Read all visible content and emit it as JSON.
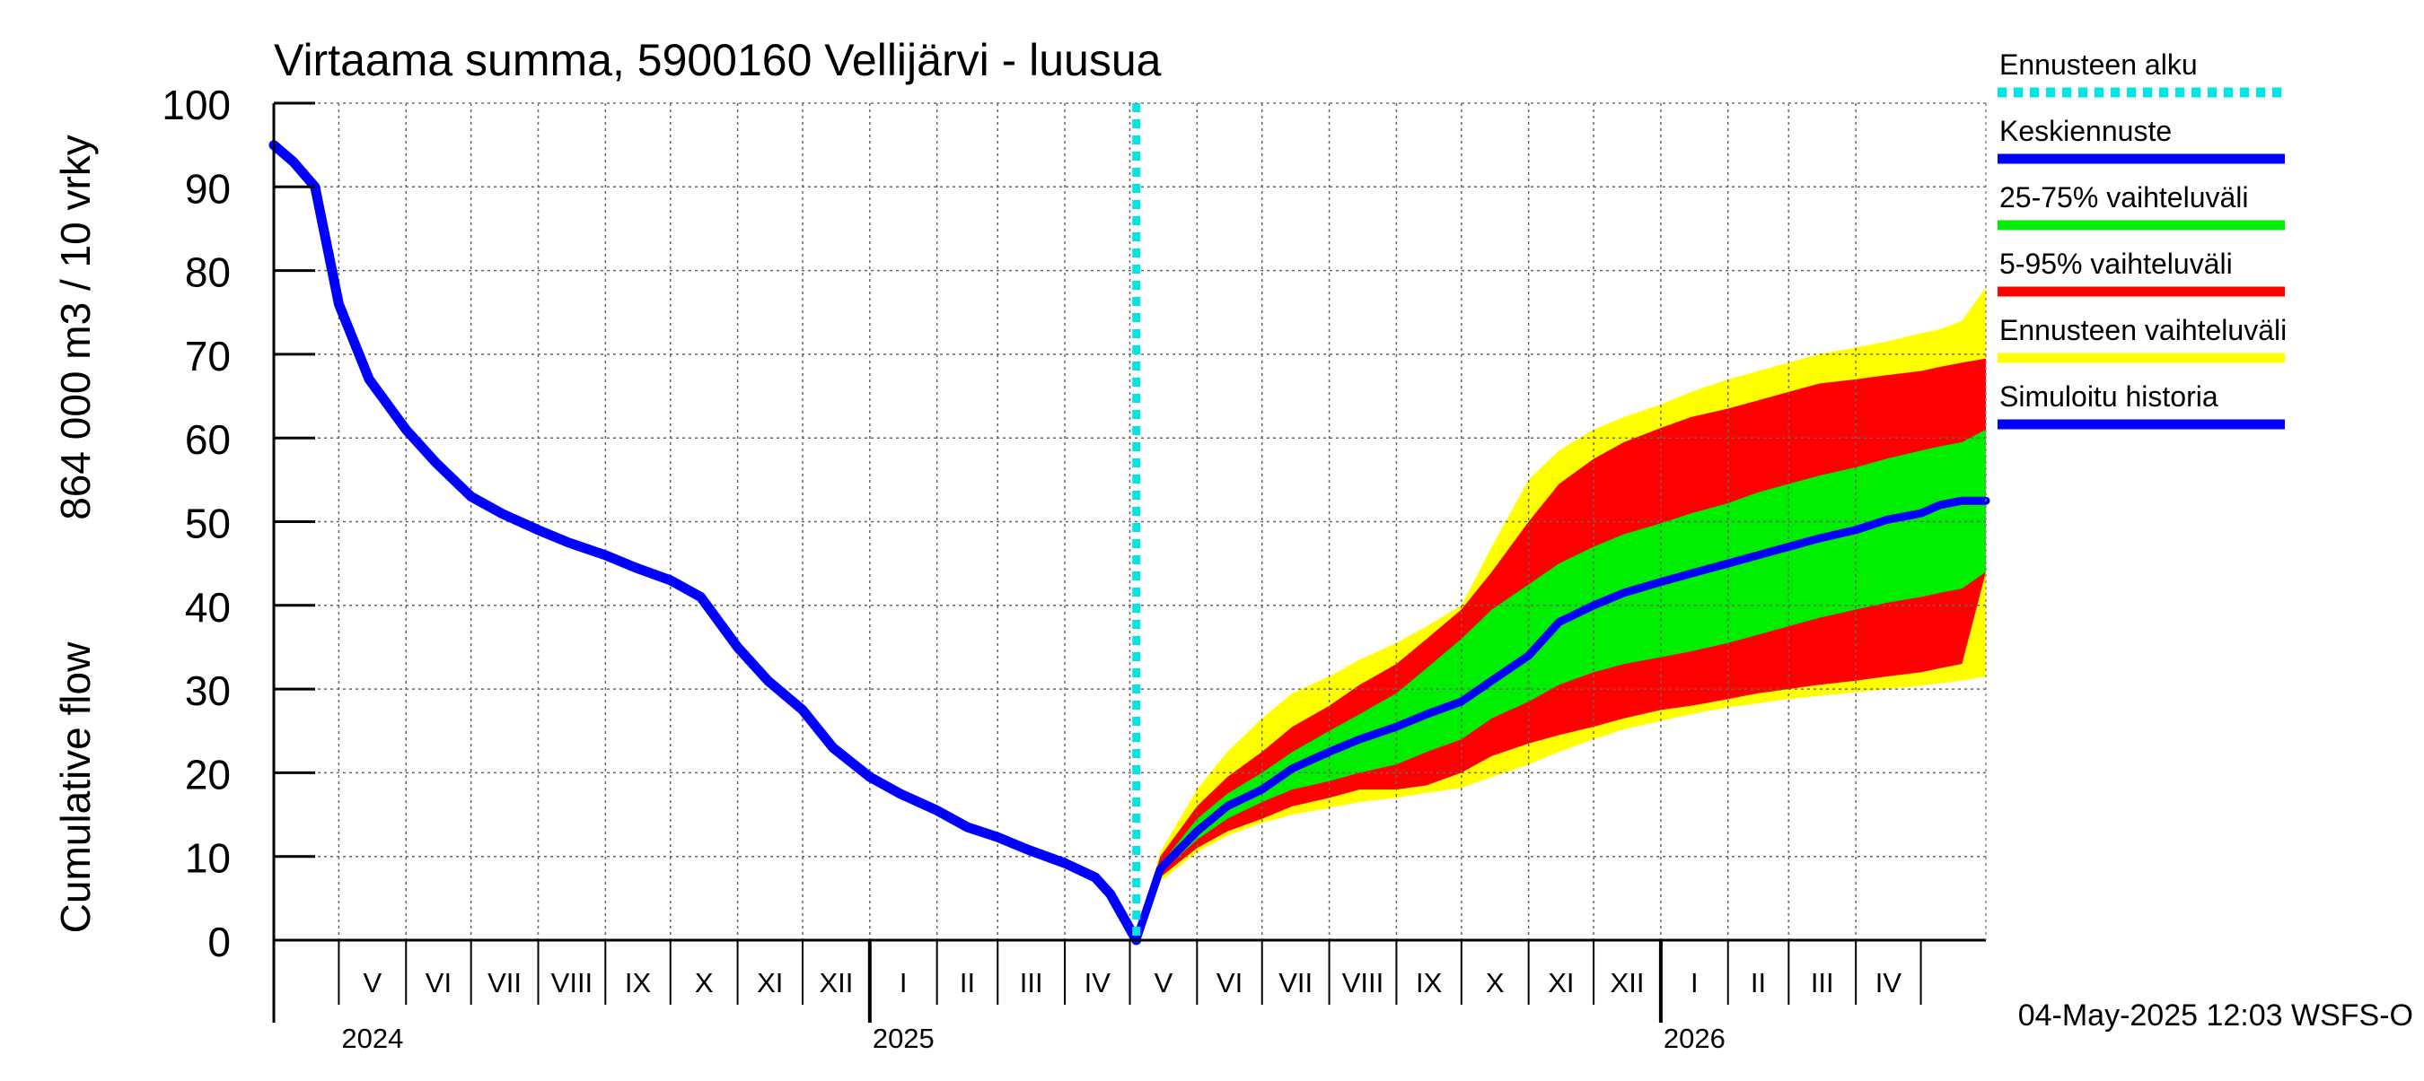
{
  "chart_data": {
    "type": "area",
    "title": "Virtaama summa, 5900160 Vellijärvi - luusua",
    "ylabel_top": "864 000 m3 / 10 vrky",
    "ylabel_bottom": "Cumulative flow",
    "ylim": [
      0,
      100
    ],
    "yticks": [
      0,
      10,
      20,
      30,
      40,
      50,
      60,
      70,
      80,
      90,
      100
    ],
    "xlim": [
      "2024-04-01",
      "2026-05-31"
    ],
    "grid": true,
    "month_labels": [
      {
        "label": "V",
        "start": "2024-05-01",
        "end": "2024-06-01"
      },
      {
        "label": "VI",
        "start": "2024-06-01",
        "end": "2024-07-01"
      },
      {
        "label": "VII",
        "start": "2024-07-01",
        "end": "2024-08-01"
      },
      {
        "label": "VIII",
        "start": "2024-08-01",
        "end": "2024-09-01"
      },
      {
        "label": "IX",
        "start": "2024-09-01",
        "end": "2024-10-01"
      },
      {
        "label": "X",
        "start": "2024-10-01",
        "end": "2024-11-01"
      },
      {
        "label": "XI",
        "start": "2024-11-01",
        "end": "2024-12-01"
      },
      {
        "label": "XII",
        "start": "2024-12-01",
        "end": "2025-01-01"
      },
      {
        "label": "I",
        "start": "2025-01-01",
        "end": "2025-02-01"
      },
      {
        "label": "II",
        "start": "2025-02-01",
        "end": "2025-03-01"
      },
      {
        "label": "III",
        "start": "2025-03-01",
        "end": "2025-04-01"
      },
      {
        "label": "IV",
        "start": "2025-04-01",
        "end": "2025-05-01"
      },
      {
        "label": "V",
        "start": "2025-05-01",
        "end": "2025-06-01"
      },
      {
        "label": "VI",
        "start": "2025-06-01",
        "end": "2025-07-01"
      },
      {
        "label": "VII",
        "start": "2025-07-01",
        "end": "2025-08-01"
      },
      {
        "label": "VIII",
        "start": "2025-08-01",
        "end": "2025-09-01"
      },
      {
        "label": "IX",
        "start": "2025-09-01",
        "end": "2025-10-01"
      },
      {
        "label": "X",
        "start": "2025-10-01",
        "end": "2025-11-01"
      },
      {
        "label": "XI",
        "start": "2025-11-01",
        "end": "2025-12-01"
      },
      {
        "label": "XII",
        "start": "2025-12-01",
        "end": "2026-01-01"
      },
      {
        "label": "I",
        "start": "2026-01-01",
        "end": "2026-02-01"
      },
      {
        "label": "II",
        "start": "2026-02-01",
        "end": "2026-03-01"
      },
      {
        "label": "III",
        "start": "2026-03-01",
        "end": "2026-04-01"
      },
      {
        "label": "IV",
        "start": "2026-04-01",
        "end": "2026-05-01"
      }
    ],
    "year_labels": [
      {
        "label": "2024",
        "date": "2024-05-01"
      },
      {
        "label": "2025",
        "date": "2025-01-01"
      },
      {
        "label": "2026",
        "date": "2026-01-01"
      }
    ],
    "forecast_start": "2025-05-04",
    "legend_position": "right",
    "legend": [
      {
        "label": "Ennusteen alku",
        "color": "#00e5e5",
        "style": "dotted"
      },
      {
        "label": "Keskiennuste",
        "color": "#0000ff",
        "style": "solid"
      },
      {
        "label": "25-75% vaihteluväli",
        "color": "#00ee00",
        "style": "solid"
      },
      {
        "label": "5-95% vaihteluväli",
        "color": "#ff0000",
        "style": "solid"
      },
      {
        "label": "Ennusteen vaihteluväli",
        "color": "#ffff00",
        "style": "solid"
      },
      {
        "label": "Simuloitu historia",
        "color": "#0000ff",
        "style": "solid"
      }
    ],
    "footer": "04-May-2025 12:03 WSFS-O",
    "history": {
      "name": "Simuloitu historia",
      "color": "#0000ff",
      "points": [
        [
          "2024-04-01",
          95
        ],
        [
          "2024-04-10",
          93
        ],
        [
          "2024-04-20",
          90
        ],
        [
          "2024-05-01",
          76
        ],
        [
          "2024-05-15",
          67
        ],
        [
          "2024-06-01",
          61
        ],
        [
          "2024-06-15",
          57
        ],
        [
          "2024-07-01",
          53
        ],
        [
          "2024-07-15",
          51
        ],
        [
          "2024-08-01",
          49
        ],
        [
          "2024-08-15",
          47.5
        ],
        [
          "2024-09-01",
          46
        ],
        [
          "2024-09-15",
          44.5
        ],
        [
          "2024-10-01",
          43
        ],
        [
          "2024-10-15",
          41
        ],
        [
          "2024-11-01",
          35
        ],
        [
          "2024-11-15",
          31
        ],
        [
          "2024-12-01",
          27.5
        ],
        [
          "2024-12-15",
          23
        ],
        [
          "2025-01-01",
          19.5
        ],
        [
          "2025-01-15",
          17.5
        ],
        [
          "2025-02-01",
          15.5
        ],
        [
          "2025-02-15",
          13.5
        ],
        [
          "2025-03-01",
          12.3
        ],
        [
          "2025-03-15",
          10.8
        ],
        [
          "2025-04-01",
          9.2
        ],
        [
          "2025-04-15",
          7.5
        ],
        [
          "2025-04-22",
          5.5
        ],
        [
          "2025-05-04",
          0
        ]
      ]
    },
    "forecast": {
      "dates": [
        "2025-05-04",
        "2025-05-15",
        "2025-06-01",
        "2025-06-15",
        "2025-07-01",
        "2025-07-15",
        "2025-08-01",
        "2025-08-15",
        "2025-09-01",
        "2025-09-15",
        "2025-10-01",
        "2025-10-15",
        "2025-11-01",
        "2025-11-15",
        "2025-12-01",
        "2025-12-15",
        "2026-01-01",
        "2026-01-15",
        "2026-02-01",
        "2026-02-15",
        "2026-03-01",
        "2026-03-15",
        "2026-04-01",
        "2026-04-15",
        "2026-05-01",
        "2026-05-10",
        "2026-05-20",
        "2026-05-31"
      ],
      "min": [
        0,
        7,
        10.5,
        12.5,
        14,
        15,
        15.8,
        16.5,
        17,
        17.6,
        18.2,
        19.5,
        21,
        22.5,
        24,
        25.2,
        26.2,
        27,
        27.8,
        28.3,
        28.8,
        29.2,
        29.6,
        30,
        30.4,
        30.7,
        31,
        31.5
      ],
      "p05": [
        0,
        7.5,
        11,
        13,
        14.5,
        16,
        17,
        18,
        18,
        18.5,
        20,
        22,
        23.5,
        24.5,
        25.5,
        26.5,
        27.5,
        28,
        28.8,
        29.5,
        30,
        30.5,
        31,
        31.5,
        32,
        32.5,
        33,
        44
      ],
      "p25": [
        0,
        8,
        12,
        14.5,
        16.5,
        18,
        19,
        20,
        21,
        22.5,
        24,
        26.5,
        28.5,
        30.5,
        32,
        33,
        33.8,
        34.5,
        35.5,
        36.5,
        37.5,
        38.5,
        39.5,
        40.3,
        41,
        41.5,
        42,
        44
      ],
      "median": [
        0,
        8.5,
        13,
        16,
        18,
        20.5,
        22.5,
        24,
        25.5,
        27,
        28.5,
        31,
        34,
        38,
        40,
        41.5,
        42.8,
        43.8,
        45,
        46,
        47,
        48,
        49,
        50.2,
        51,
        52,
        52.5,
        52.5
      ],
      "p75": [
        0,
        9,
        14.5,
        17.5,
        20,
        22.5,
        25,
        27,
        29.5,
        32.5,
        36,
        39.5,
        42.5,
        45,
        47,
        48.5,
        49.8,
        51,
        52.2,
        53.5,
        54.5,
        55.5,
        56.5,
        57.5,
        58.5,
        59,
        59.5,
        61
      ],
      "p95": [
        0,
        10,
        16,
        19.5,
        22.5,
        25.5,
        28,
        30.5,
        33,
        36,
        39.5,
        44,
        50,
        54.5,
        57.5,
        59.5,
        61.2,
        62.5,
        63.5,
        64.5,
        65.5,
        66.5,
        67,
        67.5,
        68,
        68.5,
        69,
        69.5
      ],
      "max": [
        0,
        10.5,
        18,
        22.5,
        26.5,
        29.5,
        31.5,
        33.5,
        35.5,
        37.5,
        40,
        47,
        55,
        58.5,
        61,
        62.5,
        64,
        65.5,
        67,
        68,
        69,
        70,
        70.8,
        71.5,
        72.5,
        73,
        74,
        78
      ]
    }
  }
}
